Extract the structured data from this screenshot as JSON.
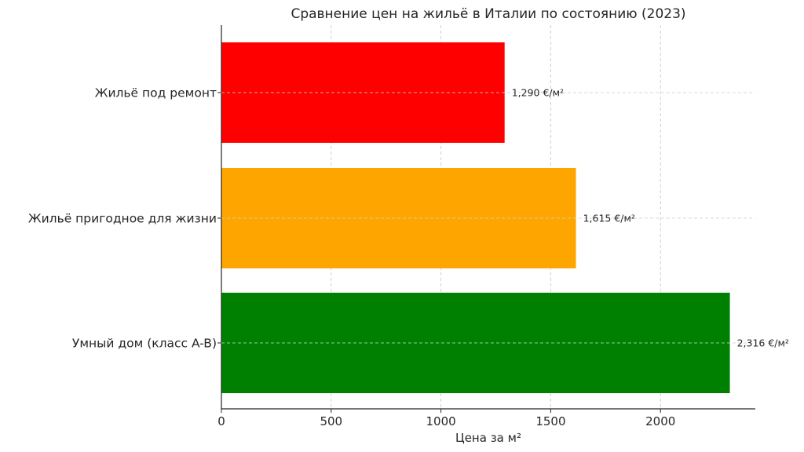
{
  "chart_data": {
    "type": "bar",
    "orientation": "horizontal",
    "title": "Сравнение цен на жильё в Италии по состоянию (2023)",
    "xlabel": "Цена за м²",
    "ylabel": "",
    "categories": [
      "Жильё под ремонт",
      "Жильё пригодное для жизни",
      "Умный дом (класс A-B)"
    ],
    "values": [
      1290,
      1615,
      2316
    ],
    "data_labels": [
      "1,290 €/м²",
      "1,615 €/м²",
      "2,316 €/м²"
    ],
    "colors": [
      "#ff0000",
      "#ffa500",
      "#008000"
    ],
    "xlim": [
      0,
      2432
    ],
    "xticks": [
      0,
      500,
      1000,
      1500,
      2000
    ],
    "xtick_labels": [
      "0",
      "500",
      "1000",
      "1500",
      "2000"
    ],
    "grid": true,
    "legend": "none"
  }
}
